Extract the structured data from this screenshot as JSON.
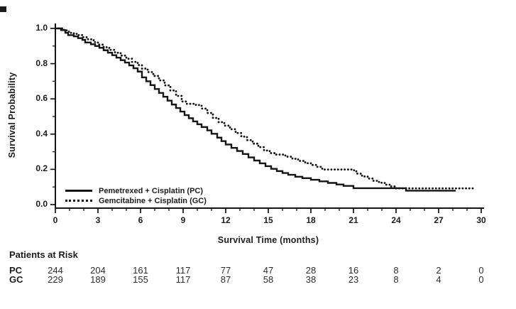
{
  "colors": {
    "ink": "#141414",
    "text": "#1c1c1c"
  },
  "chart_data": {
    "type": "line",
    "subtype": "kaplan-meier-step-curves",
    "title": "",
    "xlabel": "Survival Time (months)",
    "ylabel": "Survival Probability",
    "xlim": [
      0,
      30
    ],
    "ylim": [
      0.0,
      1.0
    ],
    "xticks": [
      0,
      3,
      6,
      9,
      12,
      15,
      18,
      21,
      24,
      27,
      30
    ],
    "x_minor_step": 1,
    "yticks": [
      "0.0",
      "0.2",
      "0.4",
      "0.6",
      "0.8",
      "1.0"
    ],
    "y_minor_step": 0.1,
    "grid": false,
    "legend_position": "inside-lower-left",
    "series": [
      {
        "name": "Pemetrexed + Cisplatin (PC)",
        "style": "solid",
        "color": "#141414",
        "points": [
          [
            0,
            1.0
          ],
          [
            0.4,
            0.99
          ],
          [
            0.7,
            0.975
          ],
          [
            0.9,
            0.962
          ],
          [
            1.3,
            0.955
          ],
          [
            1.6,
            0.945
          ],
          [
            1.9,
            0.935
          ],
          [
            2.1,
            0.92
          ],
          [
            2.5,
            0.91
          ],
          [
            2.8,
            0.9
          ],
          [
            3.1,
            0.89
          ],
          [
            3.4,
            0.876
          ],
          [
            3.7,
            0.862
          ],
          [
            4.0,
            0.848
          ],
          [
            4.3,
            0.834
          ],
          [
            4.6,
            0.82
          ],
          [
            4.9,
            0.806
          ],
          [
            5.2,
            0.79
          ],
          [
            5.5,
            0.774
          ],
          [
            5.8,
            0.755
          ],
          [
            6.1,
            0.722
          ],
          [
            6.4,
            0.7
          ],
          [
            6.7,
            0.678
          ],
          [
            7.0,
            0.656
          ],
          [
            7.3,
            0.634
          ],
          [
            7.6,
            0.612
          ],
          [
            7.9,
            0.59
          ],
          [
            8.2,
            0.568
          ],
          [
            8.5,
            0.548
          ],
          [
            8.8,
            0.528
          ],
          [
            9.1,
            0.508
          ],
          [
            9.4,
            0.49
          ],
          [
            9.7,
            0.472
          ],
          [
            10.0,
            0.456
          ],
          [
            10.3,
            0.44
          ],
          [
            10.7,
            0.421
          ],
          [
            11.0,
            0.402
          ],
          [
            11.4,
            0.38
          ],
          [
            11.7,
            0.36
          ],
          [
            12.0,
            0.341
          ],
          [
            12.4,
            0.322
          ],
          [
            12.8,
            0.304
          ],
          [
            13.2,
            0.287
          ],
          [
            13.6,
            0.268
          ],
          [
            14.0,
            0.25
          ],
          [
            14.4,
            0.234
          ],
          [
            14.8,
            0.218
          ],
          [
            15.2,
            0.203
          ],
          [
            15.6,
            0.19
          ],
          [
            16.0,
            0.179
          ],
          [
            16.4,
            0.169
          ],
          [
            16.9,
            0.158
          ],
          [
            17.4,
            0.15
          ],
          [
            18.0,
            0.141
          ],
          [
            18.6,
            0.132
          ],
          [
            19.2,
            0.123
          ],
          [
            19.8,
            0.114
          ],
          [
            20.3,
            0.106
          ],
          [
            21.0,
            0.093
          ],
          [
            24.7,
            0.079
          ],
          [
            28.2,
            0.079
          ]
        ]
      },
      {
        "name": "Gemcitabine + Cisplatin (GC)",
        "style": "dotted",
        "color": "#141414",
        "points": [
          [
            0,
            1.0
          ],
          [
            0.5,
            0.992
          ],
          [
            0.8,
            0.982
          ],
          [
            1.1,
            0.972
          ],
          [
            1.5,
            0.962
          ],
          [
            1.9,
            0.95
          ],
          [
            2.3,
            0.938
          ],
          [
            2.7,
            0.922
          ],
          [
            3.0,
            0.908
          ],
          [
            3.4,
            0.893
          ],
          [
            3.8,
            0.878
          ],
          [
            4.2,
            0.862
          ],
          [
            4.6,
            0.846
          ],
          [
            5.0,
            0.828
          ],
          [
            5.4,
            0.81
          ],
          [
            5.8,
            0.792
          ],
          [
            6.1,
            0.772
          ],
          [
            6.5,
            0.752
          ],
          [
            6.9,
            0.73
          ],
          [
            7.3,
            0.705
          ],
          [
            7.7,
            0.677
          ],
          [
            8.1,
            0.648
          ],
          [
            8.5,
            0.617
          ],
          [
            8.9,
            0.585
          ],
          [
            9.2,
            0.572
          ],
          [
            9.9,
            0.565
          ],
          [
            10.3,
            0.545
          ],
          [
            10.7,
            0.52
          ],
          [
            11.1,
            0.492
          ],
          [
            11.5,
            0.468
          ],
          [
            11.9,
            0.448
          ],
          [
            12.3,
            0.428
          ],
          [
            12.7,
            0.406
          ],
          [
            13.1,
            0.386
          ],
          [
            13.5,
            0.366
          ],
          [
            13.9,
            0.346
          ],
          [
            14.3,
            0.326
          ],
          [
            14.7,
            0.307
          ],
          [
            15.1,
            0.292
          ],
          [
            15.5,
            0.284
          ],
          [
            16.2,
            0.272
          ],
          [
            16.7,
            0.26
          ],
          [
            17.1,
            0.248
          ],
          [
            17.6,
            0.235
          ],
          [
            18.0,
            0.225
          ],
          [
            18.4,
            0.214
          ],
          [
            18.8,
            0.199
          ],
          [
            20.9,
            0.195
          ],
          [
            21.2,
            0.176
          ],
          [
            21.6,
            0.16
          ],
          [
            22.0,
            0.148
          ],
          [
            22.4,
            0.135
          ],
          [
            22.8,
            0.124
          ],
          [
            23.2,
            0.113
          ],
          [
            23.6,
            0.103
          ],
          [
            24.0,
            0.092
          ],
          [
            29.4,
            0.092
          ]
        ]
      }
    ],
    "risk_table": {
      "title": "Patients at Risk",
      "times": [
        0,
        3,
        6,
        9,
        12,
        15,
        18,
        21,
        24,
        27,
        30
      ],
      "rows": [
        {
          "label": "PC",
          "counts": [
            244,
            204,
            161,
            117,
            77,
            47,
            28,
            16,
            8,
            2,
            0
          ]
        },
        {
          "label": "GC",
          "counts": [
            229,
            189,
            155,
            117,
            87,
            58,
            38,
            23,
            8,
            4,
            0
          ]
        }
      ]
    }
  }
}
